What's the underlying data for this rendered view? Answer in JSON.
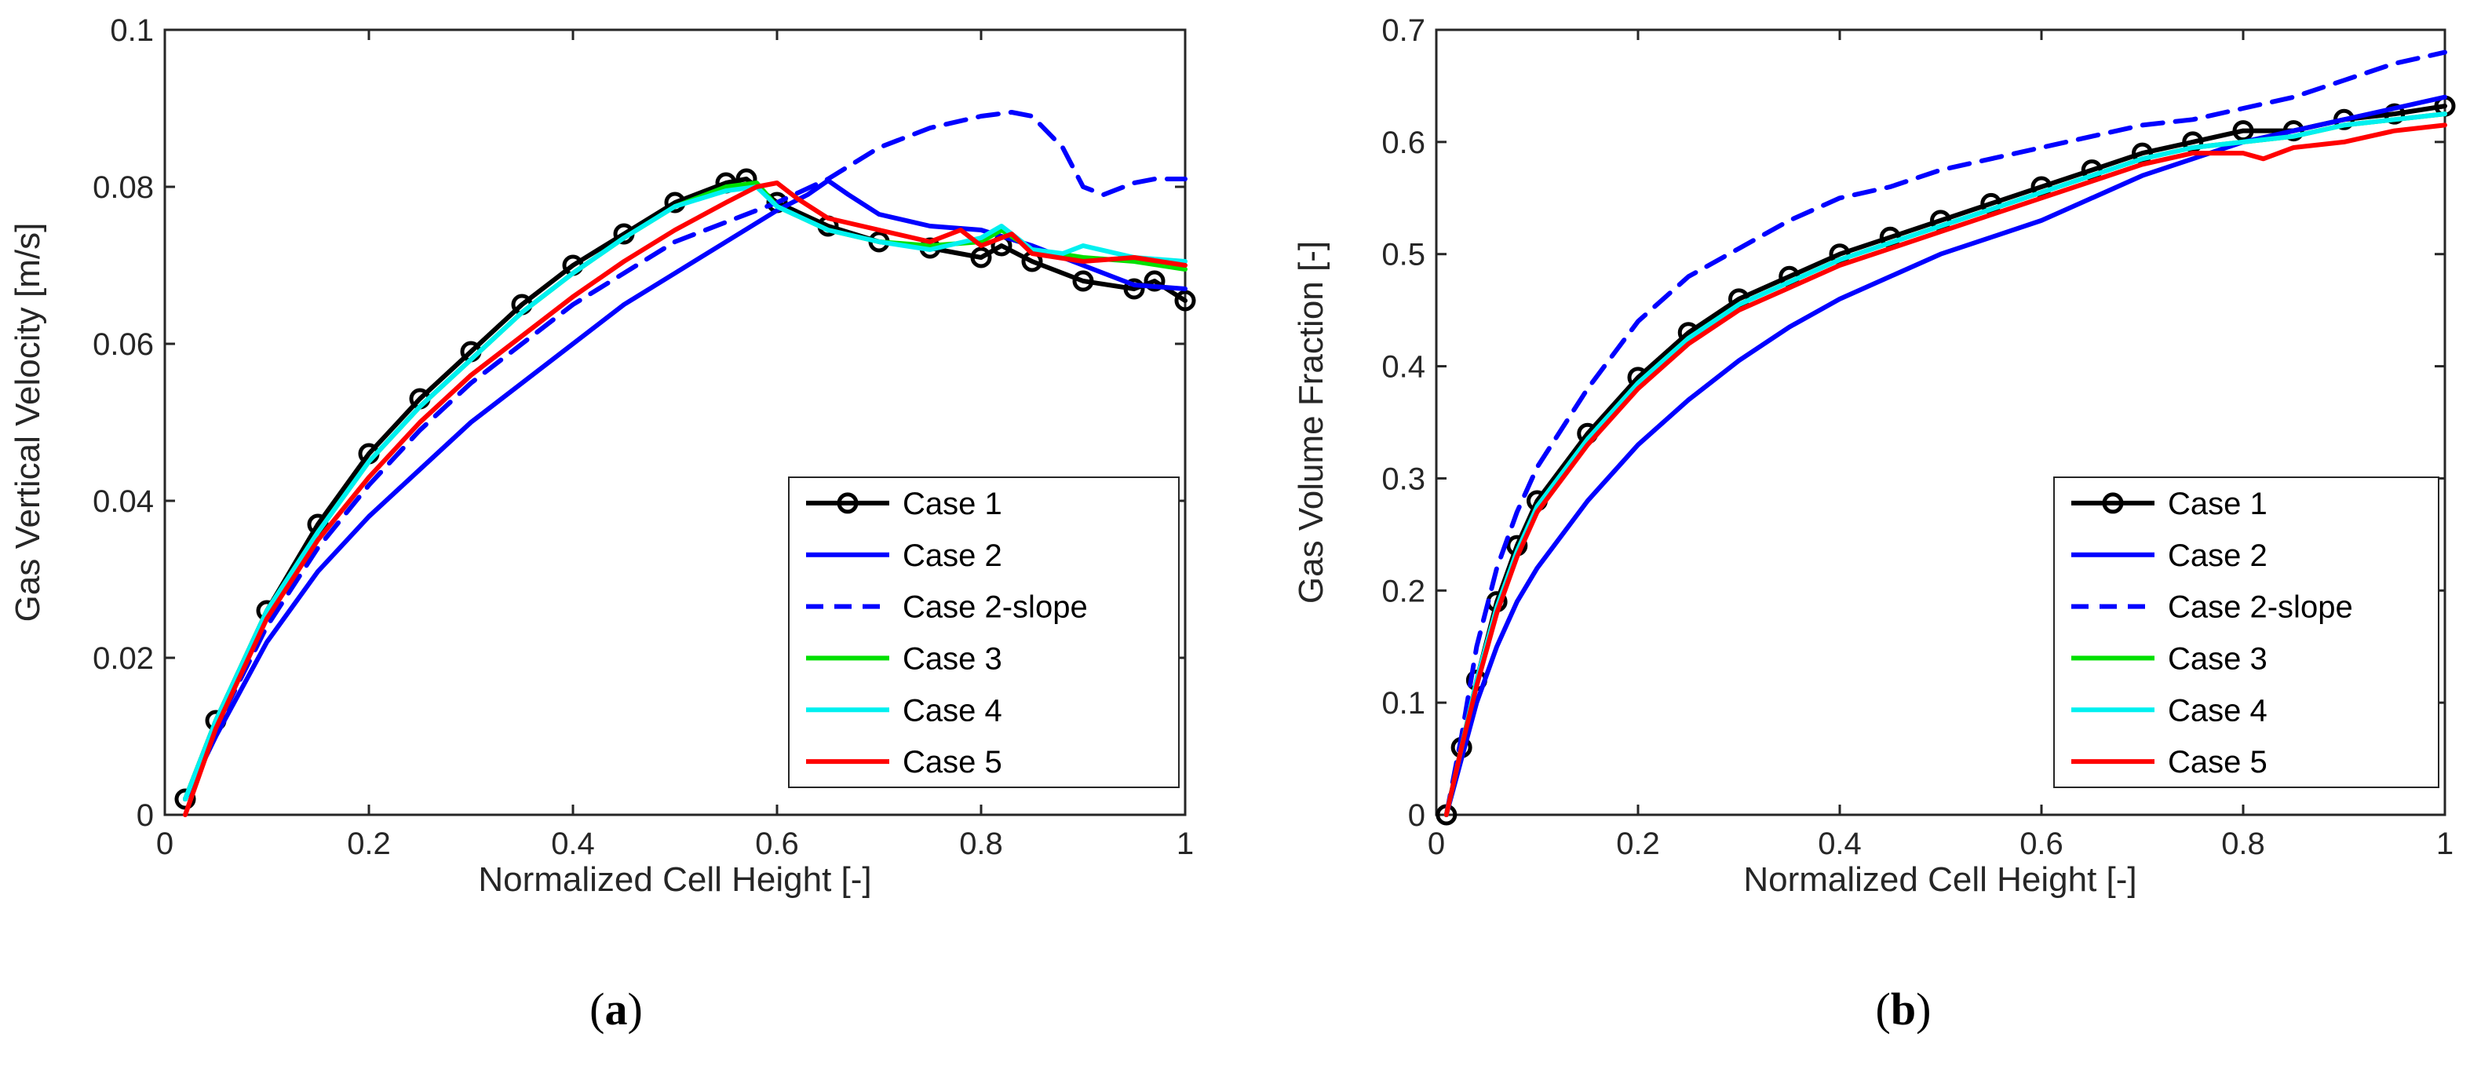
{
  "chart_data": [
    {
      "type": "line",
      "panel": "a",
      "xlabel": "Normalized Cell Height [-]",
      "ylabel": "Gas Vertical Velocity [m/s]",
      "xlim": [
        0,
        1
      ],
      "ylim": [
        0,
        0.1
      ],
      "xticks": [
        0,
        0.2,
        0.4,
        0.6,
        0.8,
        1
      ],
      "xtick_labels": [
        "0",
        "0.2",
        "0.4",
        "0.6",
        "0.8",
        "1"
      ],
      "yticks": [
        0,
        0.02,
        0.04,
        0.06,
        0.08,
        0.1
      ],
      "ytick_labels": [
        "0",
        "0.02",
        "0.04",
        "0.06",
        "0.08",
        "0.1"
      ],
      "legend_location": "bottom-right",
      "series": [
        {
          "name": "Case 1",
          "color": "#000000",
          "dash": "solid",
          "marker": "circle",
          "x": [
            0.02,
            0.05,
            0.1,
            0.15,
            0.2,
            0.25,
            0.3,
            0.35,
            0.4,
            0.45,
            0.5,
            0.55,
            0.57,
            0.6,
            0.65,
            0.7,
            0.75,
            0.8,
            0.82,
            0.85,
            0.9,
            0.95,
            0.97,
            1.0
          ],
          "y": [
            0.002,
            0.012,
            0.026,
            0.037,
            0.046,
            0.053,
            0.059,
            0.065,
            0.07,
            0.074,
            0.078,
            0.0805,
            0.081,
            0.078,
            0.075,
            0.073,
            0.0722,
            0.071,
            0.0725,
            0.0705,
            0.068,
            0.067,
            0.068,
            0.0655
          ]
        },
        {
          "name": "Case 2",
          "color": "#0000ff",
          "dash": "solid",
          "marker": "none",
          "x": [
            0.02,
            0.05,
            0.1,
            0.15,
            0.2,
            0.25,
            0.3,
            0.35,
            0.4,
            0.45,
            0.5,
            0.55,
            0.6,
            0.63,
            0.65,
            0.67,
            0.7,
            0.75,
            0.8,
            0.85,
            0.9,
            0.95,
            1.0
          ],
          "y": [
            0.002,
            0.01,
            0.022,
            0.031,
            0.038,
            0.044,
            0.05,
            0.055,
            0.06,
            0.065,
            0.069,
            0.073,
            0.077,
            0.079,
            0.0808,
            0.079,
            0.0765,
            0.075,
            0.0745,
            0.0725,
            0.07,
            0.0675,
            0.067
          ]
        },
        {
          "name": "Case 2-slope",
          "color": "#0000ff",
          "dash": "dashed",
          "marker": "none",
          "x": [
            0.02,
            0.05,
            0.1,
            0.15,
            0.2,
            0.25,
            0.3,
            0.35,
            0.4,
            0.45,
            0.5,
            0.55,
            0.6,
            0.65,
            0.7,
            0.75,
            0.8,
            0.83,
            0.85,
            0.88,
            0.9,
            0.92,
            0.95,
            0.97,
            1.0
          ],
          "y": [
            0.002,
            0.011,
            0.024,
            0.034,
            0.042,
            0.049,
            0.055,
            0.06,
            0.065,
            0.069,
            0.073,
            0.0755,
            0.078,
            0.081,
            0.085,
            0.0875,
            0.089,
            0.0895,
            0.089,
            0.085,
            0.08,
            0.079,
            0.0805,
            0.081,
            0.081
          ]
        },
        {
          "name": "Case 3",
          "color": "#00e000",
          "dash": "solid",
          "marker": "none",
          "x": [
            0.02,
            0.05,
            0.1,
            0.15,
            0.2,
            0.25,
            0.3,
            0.35,
            0.4,
            0.45,
            0.5,
            0.55,
            0.58,
            0.6,
            0.65,
            0.7,
            0.75,
            0.8,
            0.82,
            0.85,
            0.9,
            0.95,
            1.0
          ],
          "y": [
            0.002,
            0.012,
            0.026,
            0.036,
            0.045,
            0.052,
            0.058,
            0.064,
            0.069,
            0.0735,
            0.0775,
            0.08,
            0.0805,
            0.0775,
            0.0745,
            0.073,
            0.0725,
            0.073,
            0.0745,
            0.072,
            0.071,
            0.0705,
            0.0695
          ]
        },
        {
          "name": "Case 4",
          "color": "#00f0f0",
          "dash": "solid",
          "marker": "none",
          "x": [
            0.02,
            0.05,
            0.1,
            0.15,
            0.2,
            0.25,
            0.3,
            0.35,
            0.4,
            0.45,
            0.5,
            0.55,
            0.58,
            0.6,
            0.65,
            0.7,
            0.75,
            0.8,
            0.82,
            0.85,
            0.88,
            0.9,
            0.95,
            1.0
          ],
          "y": [
            0.002,
            0.012,
            0.026,
            0.036,
            0.045,
            0.052,
            0.058,
            0.064,
            0.069,
            0.0735,
            0.0775,
            0.0795,
            0.08,
            0.0775,
            0.0745,
            0.073,
            0.072,
            0.0735,
            0.075,
            0.072,
            0.0715,
            0.0725,
            0.071,
            0.0705
          ]
        },
        {
          "name": "Case 5",
          "color": "#ff0000",
          "dash": "solid",
          "marker": "none",
          "x": [
            0.02,
            0.05,
            0.1,
            0.15,
            0.2,
            0.25,
            0.3,
            0.35,
            0.4,
            0.45,
            0.5,
            0.55,
            0.58,
            0.6,
            0.62,
            0.65,
            0.7,
            0.75,
            0.78,
            0.8,
            0.83,
            0.85,
            0.9,
            0.95,
            1.0
          ],
          "y": [
            0.0,
            0.011,
            0.025,
            0.035,
            0.043,
            0.05,
            0.056,
            0.061,
            0.066,
            0.0705,
            0.0745,
            0.078,
            0.08,
            0.0805,
            0.0785,
            0.076,
            0.0745,
            0.073,
            0.0745,
            0.0725,
            0.074,
            0.0715,
            0.0705,
            0.071,
            0.07
          ]
        }
      ]
    },
    {
      "type": "line",
      "panel": "b",
      "xlabel": "Normalized Cell Height [-]",
      "ylabel": "Gas Volume Fraction [-]",
      "xlim": [
        0,
        1
      ],
      "ylim": [
        0,
        0.7
      ],
      "xticks": [
        0,
        0.2,
        0.4,
        0.6,
        0.8,
        1
      ],
      "xtick_labels": [
        "0",
        "0.2",
        "0.4",
        "0.6",
        "0.8",
        "1"
      ],
      "yticks": [
        0,
        0.1,
        0.2,
        0.3,
        0.4,
        0.5,
        0.6,
        0.7
      ],
      "ytick_labels": [
        "0",
        "0.1",
        "0.2",
        "0.3",
        "0.4",
        "0.5",
        "0.6",
        "0.7"
      ],
      "legend_location": "bottom-right",
      "series": [
        {
          "name": "Case 1",
          "color": "#000000",
          "dash": "solid",
          "marker": "circle",
          "x": [
            0.01,
            0.025,
            0.04,
            0.06,
            0.08,
            0.1,
            0.15,
            0.2,
            0.25,
            0.3,
            0.35,
            0.4,
            0.45,
            0.5,
            0.55,
            0.6,
            0.65,
            0.7,
            0.75,
            0.8,
            0.85,
            0.9,
            0.95,
            1.0
          ],
          "y": [
            0.0,
            0.06,
            0.12,
            0.19,
            0.24,
            0.28,
            0.34,
            0.39,
            0.43,
            0.46,
            0.48,
            0.5,
            0.515,
            0.53,
            0.545,
            0.56,
            0.575,
            0.59,
            0.6,
            0.61,
            0.61,
            0.62,
            0.625,
            0.632
          ]
        },
        {
          "name": "Case 2",
          "color": "#0000ff",
          "dash": "solid",
          "marker": "none",
          "x": [
            0.01,
            0.025,
            0.04,
            0.06,
            0.08,
            0.1,
            0.15,
            0.2,
            0.25,
            0.3,
            0.35,
            0.4,
            0.45,
            0.5,
            0.55,
            0.6,
            0.65,
            0.7,
            0.75,
            0.8,
            0.85,
            0.9,
            0.95,
            1.0
          ],
          "y": [
            0.0,
            0.05,
            0.1,
            0.15,
            0.19,
            0.22,
            0.28,
            0.33,
            0.37,
            0.405,
            0.435,
            0.46,
            0.48,
            0.5,
            0.515,
            0.53,
            0.55,
            0.57,
            0.585,
            0.6,
            0.61,
            0.62,
            0.63,
            0.64
          ]
        },
        {
          "name": "Case 2-slope",
          "color": "#0000ff",
          "dash": "dashed",
          "marker": "none",
          "x": [
            0.01,
            0.025,
            0.04,
            0.06,
            0.08,
            0.1,
            0.15,
            0.2,
            0.25,
            0.3,
            0.35,
            0.4,
            0.45,
            0.5,
            0.55,
            0.6,
            0.65,
            0.7,
            0.75,
            0.8,
            0.85,
            0.9,
            0.95,
            1.0
          ],
          "y": [
            0.0,
            0.07,
            0.15,
            0.22,
            0.27,
            0.31,
            0.38,
            0.44,
            0.48,
            0.505,
            0.53,
            0.55,
            0.56,
            0.575,
            0.585,
            0.595,
            0.605,
            0.615,
            0.62,
            0.63,
            0.64,
            0.655,
            0.67,
            0.68
          ]
        },
        {
          "name": "Case 3",
          "color": "#00e000",
          "dash": "solid",
          "marker": "none",
          "x": [
            0.01,
            0.025,
            0.04,
            0.06,
            0.08,
            0.1,
            0.15,
            0.2,
            0.25,
            0.3,
            0.35,
            0.4,
            0.45,
            0.5,
            0.55,
            0.6,
            0.65,
            0.7,
            0.75,
            0.8,
            0.85,
            0.9,
            0.95,
            1.0
          ],
          "y": [
            0.0,
            0.06,
            0.12,
            0.185,
            0.235,
            0.275,
            0.335,
            0.385,
            0.425,
            0.455,
            0.475,
            0.495,
            0.51,
            0.525,
            0.54,
            0.555,
            0.57,
            0.585,
            0.595,
            0.6,
            0.605,
            0.615,
            0.62,
            0.625
          ]
        },
        {
          "name": "Case 4",
          "color": "#00f0f0",
          "dash": "solid",
          "marker": "none",
          "x": [
            0.01,
            0.025,
            0.04,
            0.06,
            0.08,
            0.1,
            0.15,
            0.2,
            0.25,
            0.3,
            0.35,
            0.4,
            0.45,
            0.5,
            0.55,
            0.6,
            0.65,
            0.7,
            0.75,
            0.8,
            0.85,
            0.9,
            0.95,
            1.0
          ],
          "y": [
            0.0,
            0.06,
            0.12,
            0.185,
            0.235,
            0.275,
            0.335,
            0.385,
            0.425,
            0.455,
            0.475,
            0.495,
            0.51,
            0.525,
            0.54,
            0.555,
            0.57,
            0.585,
            0.595,
            0.6,
            0.605,
            0.615,
            0.62,
            0.625
          ]
        },
        {
          "name": "Case 5",
          "color": "#ff0000",
          "dash": "solid",
          "marker": "none",
          "x": [
            0.01,
            0.025,
            0.04,
            0.06,
            0.08,
            0.1,
            0.15,
            0.2,
            0.25,
            0.3,
            0.35,
            0.4,
            0.45,
            0.5,
            0.55,
            0.6,
            0.65,
            0.7,
            0.75,
            0.8,
            0.82,
            0.85,
            0.9,
            0.95,
            1.0
          ],
          "y": [
            0.0,
            0.06,
            0.115,
            0.18,
            0.23,
            0.27,
            0.33,
            0.38,
            0.42,
            0.45,
            0.47,
            0.49,
            0.505,
            0.52,
            0.535,
            0.55,
            0.565,
            0.58,
            0.59,
            0.59,
            0.585,
            0.595,
            0.6,
            0.61,
            0.615
          ]
        }
      ]
    }
  ],
  "panel_labels": [
    "a",
    "b"
  ]
}
